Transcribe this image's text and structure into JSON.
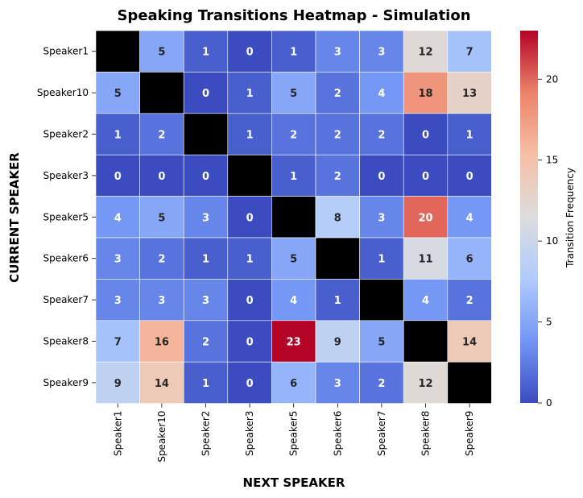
{
  "chart_data": {
    "type": "heatmap",
    "title": "Speaking Transitions Heatmap - Simulation",
    "xlabel": "NEXT SPEAKER",
    "ylabel": "CURRENT SPEAKER",
    "colorbar_label": "Transition Frequency",
    "x_categories": [
      "Speaker1",
      "Speaker10",
      "Speaker2",
      "Speaker3",
      "Speaker5",
      "Speaker6",
      "Speaker7",
      "Speaker8",
      "Speaker9"
    ],
    "y_categories": [
      "Speaker1",
      "Speaker10",
      "Speaker2",
      "Speaker3",
      "Speaker5",
      "Speaker6",
      "Speaker7",
      "Speaker8",
      "Speaker9"
    ],
    "values": [
      [
        null,
        5,
        1,
        0,
        1,
        3,
        3,
        12,
        7
      ],
      [
        5,
        null,
        0,
        1,
        5,
        2,
        4,
        18,
        13
      ],
      [
        1,
        2,
        null,
        1,
        2,
        2,
        2,
        0,
        1
      ],
      [
        0,
        0,
        0,
        null,
        1,
        2,
        0,
        0,
        0
      ],
      [
        4,
        5,
        3,
        0,
        null,
        8,
        3,
        20,
        4
      ],
      [
        3,
        2,
        1,
        1,
        5,
        null,
        1,
        11,
        6
      ],
      [
        3,
        3,
        3,
        0,
        4,
        1,
        null,
        4,
        2
      ],
      [
        7,
        16,
        2,
        0,
        23,
        9,
        5,
        null,
        14
      ],
      [
        9,
        14,
        1,
        0,
        6,
        3,
        2,
        12,
        null
      ]
    ],
    "vmin": 0,
    "vmax": 23,
    "colorbar_ticks": [
      0,
      5,
      10,
      15,
      20
    ],
    "colormap": "coolwarm",
    "colormap_stops": [
      "#3b4cc0",
      "#7396f5",
      "#b0cbfc",
      "#dcdddd",
      "#f6bfa5",
      "#ec8369",
      "#b40426"
    ],
    "diagonal_color": "#000000",
    "cell_grid_color": "#ffffff"
  }
}
